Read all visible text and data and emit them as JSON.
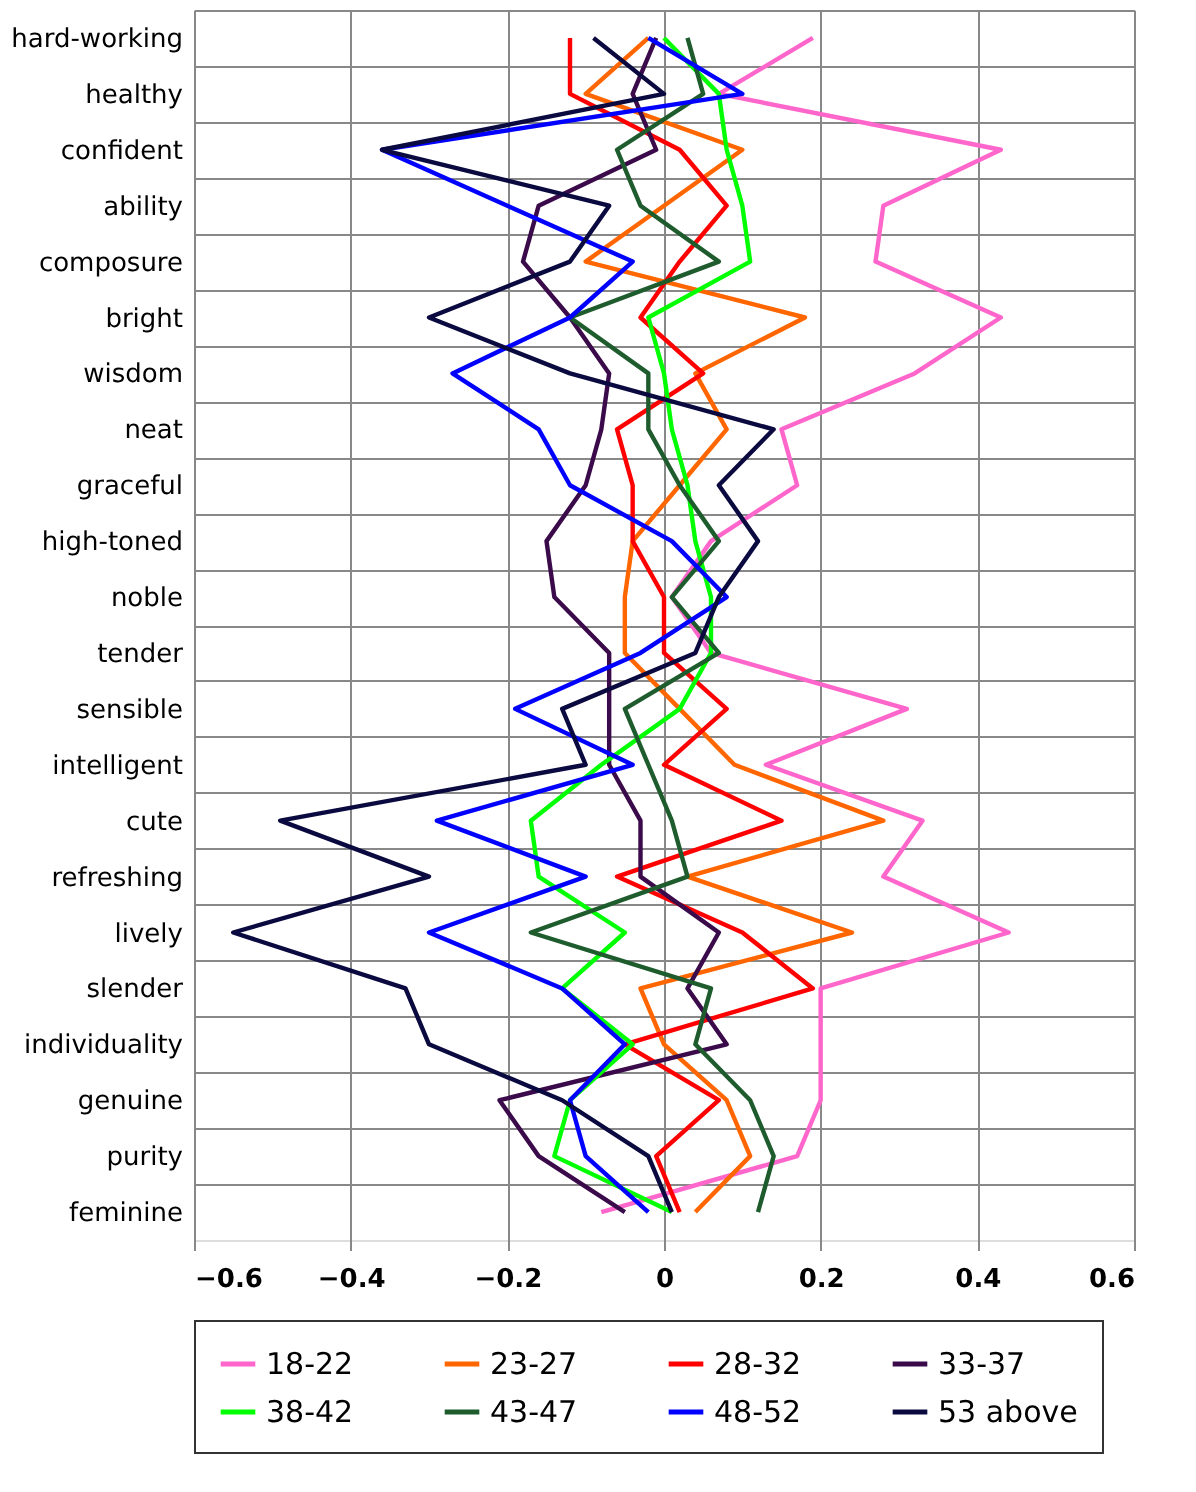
{
  "chart_data": {
    "type": "line",
    "orientation": "horizontal",
    "categories": [
      "hard-working",
      "healthy",
      "confident",
      "ability",
      "composure",
      "bright",
      "wisdom",
      "neat",
      "graceful",
      "high-toned",
      "noble",
      "tender",
      "sensible",
      "intelligent",
      "cute",
      "refreshing",
      "lively",
      "slender",
      "individuality",
      "genuine",
      "purity",
      "feminine"
    ],
    "series": [
      {
        "name": "18-22",
        "color": "#ff66cc",
        "values": [
          0.19,
          0.07,
          0.43,
          0.28,
          0.27,
          0.43,
          0.32,
          0.15,
          0.17,
          0.06,
          0.01,
          0.06,
          0.31,
          0.13,
          0.33,
          0.28,
          0.44,
          0.2,
          0.2,
          0.2,
          0.17,
          -0.08
        ]
      },
      {
        "name": "23-27",
        "color": "#ff6600",
        "values": [
          -0.02,
          -0.1,
          0.1,
          0.0,
          -0.1,
          0.18,
          0.04,
          0.08,
          0.02,
          -0.04,
          -0.05,
          -0.05,
          0.02,
          0.09,
          0.28,
          0.03,
          0.24,
          -0.03,
          0.0,
          0.08,
          0.11,
          0.04
        ]
      },
      {
        "name": "28-32",
        "color": "#ff0000",
        "values": [
          -0.12,
          -0.12,
          0.02,
          0.08,
          0.02,
          -0.03,
          0.05,
          -0.06,
          -0.04,
          -0.04,
          0.0,
          0.0,
          0.08,
          0.0,
          0.15,
          -0.06,
          0.1,
          0.19,
          -0.05,
          0.07,
          -0.01,
          0.02
        ]
      },
      {
        "name": "33-37",
        "color": "#3a0a4a",
        "values": [
          -0.01,
          -0.04,
          -0.01,
          -0.16,
          -0.18,
          -0.12,
          -0.07,
          -0.08,
          -0.1,
          -0.15,
          -0.14,
          -0.07,
          -0.07,
          -0.07,
          -0.03,
          -0.03,
          0.07,
          0.03,
          0.08,
          -0.21,
          -0.16,
          -0.05
        ]
      },
      {
        "name": "38-42",
        "color": "#00ff00",
        "values": [
          0.0,
          0.07,
          0.08,
          0.1,
          0.11,
          -0.02,
          0.0,
          0.01,
          0.03,
          0.04,
          0.06,
          0.06,
          0.02,
          -0.08,
          -0.17,
          -0.16,
          -0.05,
          -0.13,
          -0.04,
          -0.12,
          -0.14,
          0.01
        ]
      },
      {
        "name": "43-47",
        "color": "#1e5c2e",
        "values": [
          0.03,
          0.05,
          -0.06,
          -0.03,
          0.07,
          -0.12,
          -0.02,
          -0.02,
          0.02,
          0.07,
          0.01,
          0.07,
          -0.05,
          -0.02,
          0.01,
          0.03,
          -0.17,
          0.06,
          0.04,
          0.11,
          0.14,
          0.12
        ]
      },
      {
        "name": "48-52",
        "color": "#0000ff",
        "values": [
          -0.02,
          0.1,
          -0.36,
          -0.2,
          -0.04,
          -0.12,
          -0.27,
          -0.16,
          -0.12,
          0.01,
          0.08,
          -0.03,
          -0.19,
          -0.04,
          -0.29,
          -0.1,
          -0.3,
          -0.13,
          -0.05,
          -0.12,
          -0.1,
          -0.02
        ]
      },
      {
        "name": "53 above",
        "color": "#0a0a40",
        "values": [
          -0.09,
          0.0,
          -0.36,
          -0.07,
          -0.12,
          -0.3,
          -0.12,
          0.14,
          0.07,
          0.12,
          0.07,
          0.04,
          -0.13,
          -0.1,
          -0.49,
          -0.3,
          -0.55,
          -0.33,
          -0.3,
          -0.13,
          -0.02,
          0.01
        ]
      }
    ],
    "xlim": [
      -0.6,
      0.6
    ],
    "xticks": [
      -0.6,
      -0.4,
      -0.2,
      0,
      0.2,
      0.4,
      0.6
    ],
    "grid": true,
    "legend": "bottom",
    "marker": "none",
    "line_style": "solid"
  }
}
